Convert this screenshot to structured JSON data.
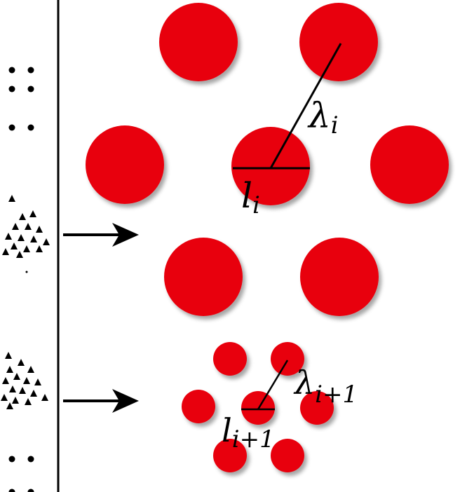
{
  "colors": {
    "particle": "#e8000b",
    "line": "#000000",
    "background": "#ffffff"
  },
  "labels": {
    "lambda_i": {
      "main": "λ",
      "sub": "i"
    },
    "l_i": {
      "main": "l",
      "sub": "i"
    },
    "lambda_i1": {
      "main": "λ",
      "sub": "i+1"
    },
    "l_i1": {
      "main": "l",
      "sub": "i+1"
    }
  }
}
